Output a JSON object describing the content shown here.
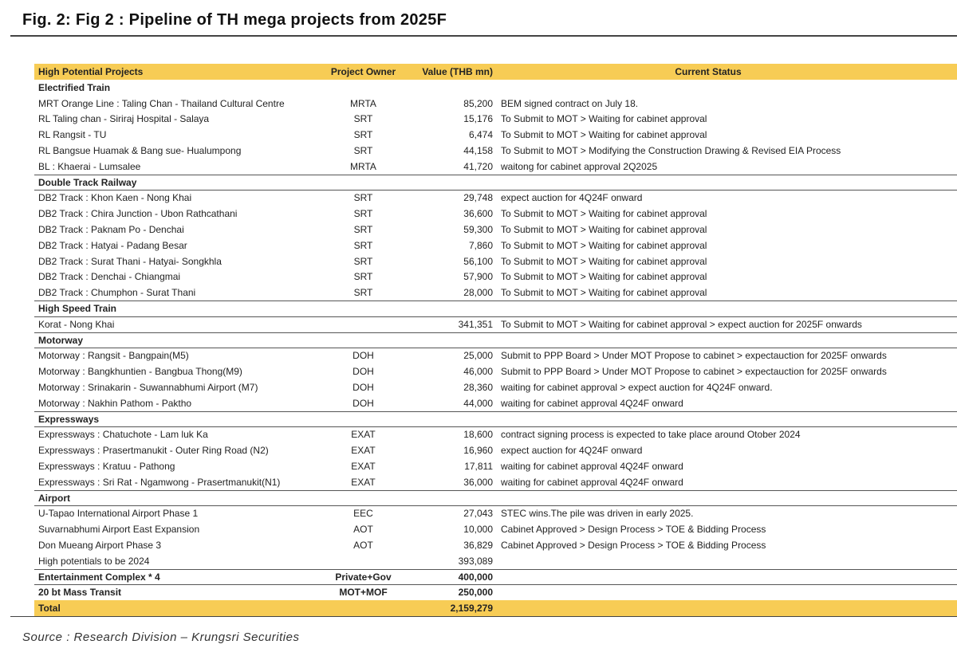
{
  "header": {
    "title": "Fig. 2: Fig 2 : Pipeline of TH mega projects from 2025F"
  },
  "table": {
    "columns": [
      "High Potential Projects",
      "Project Owner",
      "Value (THB mn)",
      "Current Status"
    ],
    "sections": [
      {
        "title": "Electrified Train",
        "rows": [
          {
            "project": "MRT Orange Line : Taling Chan - Thailand Cultural Centre",
            "owner": "MRTA",
            "value": "85,200",
            "status": "BEM signed contract on July 18."
          },
          {
            "project": "RL Taling chan - Siriraj Hospital - Salaya",
            "owner": "SRT",
            "value": "15,176",
            "status": "To Submit to MOT > Waiting for cabinet approval"
          },
          {
            "project": "RL Rangsit - TU",
            "owner": "SRT",
            "value": "6,474",
            "status": "To Submit to MOT > Waiting for cabinet approval"
          },
          {
            "project": "RL Bangsue Huamak & Bang sue- Hualumpong",
            "owner": "SRT",
            "value": "44,158",
            "status": "To Submit to MOT >  Modifying the Construction Drawing & Revised EIA Process"
          },
          {
            "project": "BL : Khaerai - Lumsalee",
            "owner": "MRTA",
            "value": "41,720",
            "status": "waitong for cabinet approval 2Q2025"
          }
        ]
      },
      {
        "title": "Double Track Railway",
        "rows": [
          {
            "project": "DB2 Track : Khon Kaen - Nong Khai",
            "owner": "SRT",
            "value": "29,748",
            "status": "expect auction for 4Q24F onward"
          },
          {
            "project": "DB2 Track : Chira Junction - Ubon Rathcathani",
            "owner": "SRT",
            "value": "36,600",
            "status": "To Submit to MOT > Waiting for cabinet approval"
          },
          {
            "project": "DB2 Track : Paknam Po - Denchai",
            "owner": "SRT",
            "value": "59,300",
            "status": "To Submit to MOT > Waiting for cabinet approval"
          },
          {
            "project": "DB2 Track : Hatyai - Padang Besar",
            "owner": "SRT",
            "value": "7,860",
            "status": "To Submit to MOT > Waiting for cabinet approval"
          },
          {
            "project": "DB2 Track : Surat Thani - Hatyai- Songkhla",
            "owner": "SRT",
            "value": "56,100",
            "status": "To Submit to MOT > Waiting for cabinet approval"
          },
          {
            "project": "DB2 Track :  Denchai - Chiangmai",
            "owner": "SRT",
            "value": "57,900",
            "status": "To Submit to MOT > Waiting for cabinet approval"
          },
          {
            "project": "DB2 Track :  Chumphon - Surat Thani",
            "owner": "SRT",
            "value": "28,000",
            "status": "To Submit to MOT > Waiting for cabinet approval"
          }
        ]
      },
      {
        "title": "High Speed Train",
        "rows": [
          {
            "project": "Korat - Nong Khai",
            "value": "341,351",
            "status": "To Submit to MOT > Waiting for cabinet approval > expect auction for 2025F onwards"
          }
        ]
      },
      {
        "title": "Motorway",
        "rows": [
          {
            "project": "Motorway : Rangsit - Bangpain(M5)",
            "owner": "DOH",
            "value": "25,000",
            "status": "Submit to PPP Board > Under MOT Propose to cabinet > expectauction for 2025F onwards"
          },
          {
            "project": "Motorway : Bangkhuntien - Bangbua Thong(M9)",
            "owner": "DOH",
            "value": "46,000",
            "status": "Submit to PPP Board > Under MOT Propose to cabinet > expectauction for 2025F onwards"
          },
          {
            "project": "Motorway : Srinakarin - Suwannabhumi Airport (M7)",
            "owner": "DOH",
            "value": "28,360",
            "status": "waiting for cabinet approval > expect auction for 4Q24F onward."
          },
          {
            "project": "Motorway : Nakhin Pathom - Paktho",
            "owner": "DOH",
            "value": "44,000",
            "status": "waiting for cabinet approval 4Q24F onward"
          }
        ]
      },
      {
        "title": "Expressways",
        "rows": [
          {
            "project": "Expressways : Chatuchote - Lam luk Ka",
            "owner": "EXAT",
            "value": "18,600",
            "status": "contract signing process is expected to take place around Otober 2024"
          },
          {
            "project": "Expressways : Prasertmanukit - Outer Ring Road (N2)",
            "owner": "EXAT",
            "value": "16,960",
            "status": "expect auction for 4Q24F onward"
          },
          {
            "project": "Expressways : Kratuu - Pathong",
            "owner": "EXAT",
            "value": "17,811",
            "status": "waiting for cabinet approval 4Q24F onward"
          },
          {
            "project": "Expressways :  Sri Rat - Ngamwong - Prasertmanukit(N1)",
            "owner": "EXAT",
            "value": "36,000",
            "status": "waiting for cabinet approval 4Q24F onward"
          }
        ]
      },
      {
        "title": "Airport",
        "rows": [
          {
            "project": "U-Tapao International Airport Phase 1",
            "owner": "EEC",
            "value": "27,043",
            "status": "STEC wins.The pile was driven in early 2025."
          },
          {
            "project": "Suvarnabhumi Airport East Expansion",
            "owner": "AOT",
            "value": "10,000",
            "status": "Cabinet Approved > Design Process > TOE & Bidding Process"
          },
          {
            "project": "Don Mueang Airport Phase 3",
            "owner": "AOT",
            "value": "36,829",
            "status": "Cabinet Approved > Design Process > TOE & Bidding Process"
          },
          {
            "project": "High potentials to be 2024",
            "value": "393,089"
          }
        ]
      }
    ],
    "summary_rows": [
      {
        "project": "Entertainment Complex * 4",
        "owner": "Private+Gov",
        "value": "400,000"
      },
      {
        "project": "20 bt Mass Transit",
        "owner": "MOT+MOF",
        "value": "250,000"
      }
    ],
    "total": {
      "project": "Total",
      "value": "2,159,279"
    }
  },
  "source": "Source :  Research  Division – Krungsri  Securities"
}
